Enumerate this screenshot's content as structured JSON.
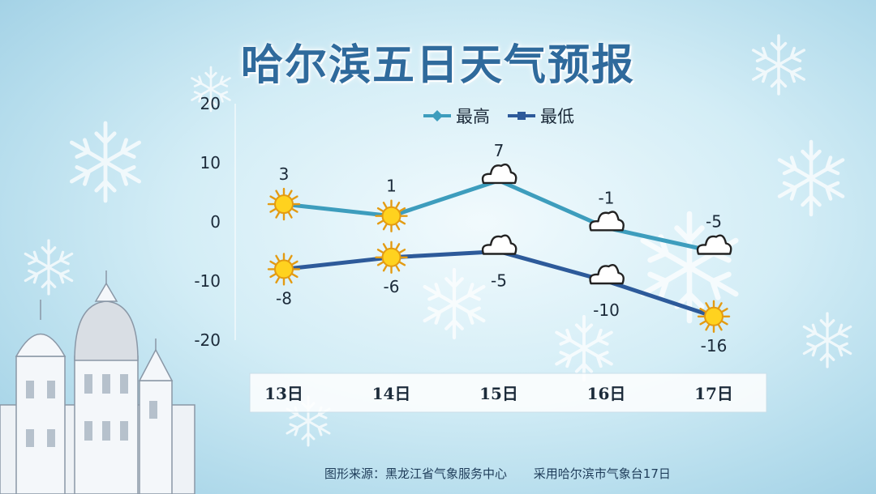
{
  "page": {
    "title": "哈尔滨五日天气预报",
    "source_left": "图形来源：黑龙江省气象服务中心",
    "source_right": "采用哈尔滨市气象台17日"
  },
  "chart_data": {
    "type": "line",
    "title": "哈尔滨五日天气预报",
    "categories": [
      "13日",
      "14日",
      "15日",
      "16日",
      "17日"
    ],
    "ylim": [
      -20,
      20
    ],
    "yticks": [
      20,
      10,
      0,
      -10,
      -20
    ],
    "grid": false,
    "legend_position": "top",
    "series": [
      {
        "name": "最高",
        "values": [
          3,
          1,
          7,
          -1,
          -5
        ],
        "color": "#3d9dbd",
        "weather_icons": [
          "sun-icon",
          "sun-icon",
          "cloud-icon",
          "cloud-icon",
          "cloud-icon"
        ]
      },
      {
        "name": "最低",
        "values": [
          -8,
          -6,
          -5,
          -10,
          -16
        ],
        "color": "#2d5a9a",
        "weather_icons": [
          "sun-icon",
          "sun-icon",
          "cloud-icon",
          "cloud-icon",
          "sun-icon"
        ]
      }
    ]
  }
}
